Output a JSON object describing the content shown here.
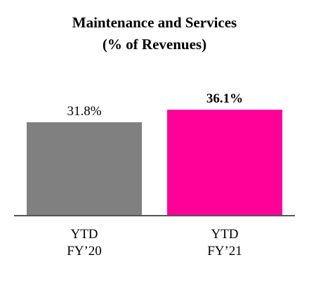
{
  "chart_data": {
    "type": "bar",
    "title": "Maintenance and Services",
    "subtitle": "(% of Revenues)",
    "categories": [
      {
        "line1": "YTD",
        "line2": "FY’20"
      },
      {
        "line1": "YTD",
        "line2": "FY’21"
      }
    ],
    "values": [
      31.8,
      36.1
    ],
    "data_labels": [
      "31.8%",
      "36.1%"
    ],
    "data_label_bold": [
      false,
      true
    ],
    "colors": [
      "#808080",
      "#ff0099"
    ],
    "axis_color": "#555555",
    "ylim": [
      0,
      48.2
    ],
    "grid": false,
    "legend": "none"
  }
}
